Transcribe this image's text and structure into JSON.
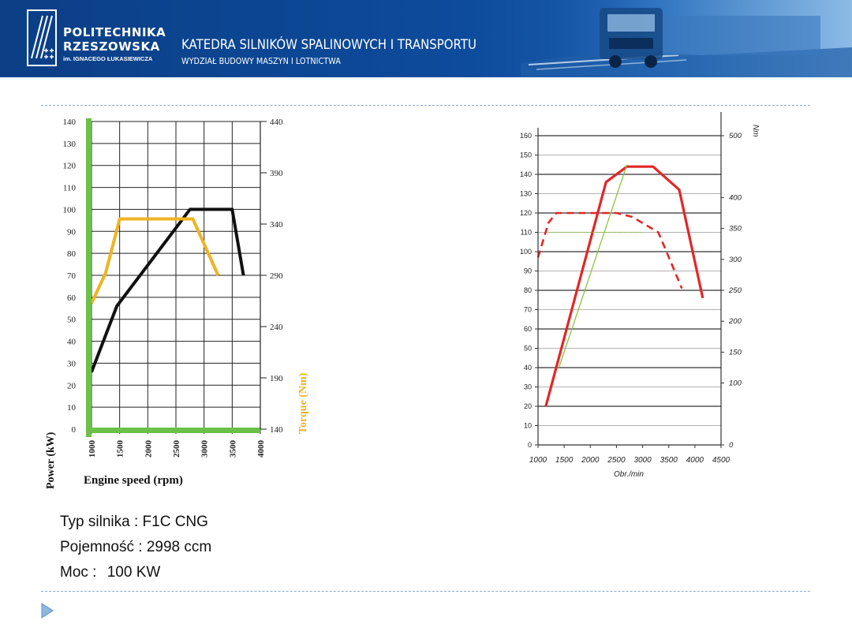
{
  "header": {
    "uni_line1": "POLITECHNIKA",
    "uni_line2": "RZESZOWSKA",
    "uni_sub": "im. IGNACEGO ŁUKASIEWICZA",
    "dept_title": "KATEDRA SILNIKÓW SPALINOWYCH I TRANSPORTU",
    "dept_sub": "WYDZIAŁ BUDOWY MASZYN I LOTNICTWA",
    "logo_icon": "university-logo-icon",
    "banner_icon": "truck-banner-icon"
  },
  "spec": {
    "line1": "Typ silnika  :  F1C CNG",
    "line2": "Pojemność :  2998 ccm",
    "line3_label": "Moc  :",
    "line3_value": "100 KW"
  },
  "bullet_icon": "triangle-bullet-icon",
  "chart_data": [
    {
      "type": "line",
      "title": "",
      "xlabel": "Engine speed (rpm)",
      "ylabel": "Power (kW)",
      "y2label": "Torque (Nm)",
      "xlim": [
        1000,
        4000
      ],
      "ylim": [
        0,
        140
      ],
      "y2lim": [
        140,
        440
      ],
      "x_ticks": [
        "1000",
        "1500",
        "2000",
        "2500",
        "3000",
        "3500",
        "4000"
      ],
      "y_ticks": [
        "0",
        "10",
        "20",
        "30",
        "40",
        "50",
        "60",
        "70",
        "80",
        "90",
        "100",
        "110",
        "120",
        "130",
        "140"
      ],
      "y2_ticks": [
        "140",
        "190",
        "240",
        "290",
        "340",
        "390",
        "440"
      ],
      "grid": true,
      "colors": {
        "power": "#111111",
        "torque": "#f0b323",
        "axis": "#6cc04a"
      },
      "series": [
        {
          "axis": "left",
          "x": [
            1000,
            1450,
            2750,
            3500,
            3700
          ],
          "y": [
            26,
            56,
            100,
            100,
            70
          ]
        },
        {
          "axis": "right",
          "x": [
            1000,
            1250,
            1500,
            2800,
            3250
          ],
          "y": [
            263,
            292,
            345,
            345,
            290
          ]
        }
      ]
    },
    {
      "type": "line",
      "title": "",
      "xlabel": "Obr./min",
      "ylabel": "",
      "y2label": "Nm",
      "xlim": [
        1000,
        4500
      ],
      "ylim": [
        0,
        160
      ],
      "y2lim": [
        0,
        500
      ],
      "x_ticks": [
        "1000",
        "1500",
        "2000",
        "2500",
        "3000",
        "3500",
        "4000",
        "4500"
      ],
      "y_ticks": [
        "0",
        "10",
        "20",
        "30",
        "40",
        "50",
        "60",
        "70",
        "80",
        "90",
        "100",
        "110",
        "120",
        "130",
        "140",
        "150",
        "160"
      ],
      "y2_ticks": [
        "0",
        "100",
        "150",
        "200",
        "250",
        "300",
        "350",
        "400",
        "500"
      ],
      "grid": true,
      "colors": {
        "power": "#e32626",
        "torque": "#e32626",
        "green": "#88c540",
        "axis": "#333333"
      },
      "series": [
        {
          "axis": "left",
          "style": "solid",
          "x": [
            1150,
            2300,
            2700,
            3200,
            3700,
            4150
          ],
          "y": [
            20,
            136,
            144,
            144,
            132,
            76
          ]
        },
        {
          "axis": "left",
          "style": "dashed",
          "x": [
            1000,
            1200,
            1350,
            2100,
            2500,
            2800,
            3300,
            3550,
            3750
          ],
          "y": [
            97,
            115,
            120,
            120,
            120,
            118,
            110,
            94,
            81
          ]
        },
        {
          "axis": "left",
          "style": "thin-green",
          "x": [
            1400,
            2700
          ],
          "y": [
            40,
            145
          ]
        },
        {
          "axis": "left",
          "style": "dotted-green",
          "x": [
            1200,
            3000
          ],
          "y": [
            110,
            110
          ]
        }
      ]
    }
  ]
}
